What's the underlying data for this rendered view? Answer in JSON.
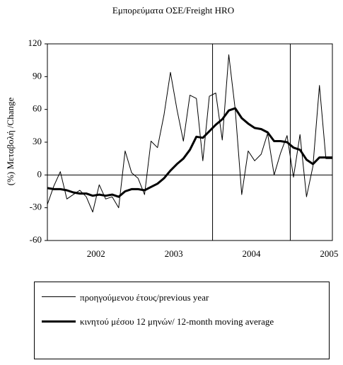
{
  "chart_data": {
    "type": "line",
    "title": "Εμπορεύματα ΟΣΕ/Freight HRO",
    "y_label": "(%) Μεταβολή /Change",
    "categories": [
      null,
      null,
      null,
      null,
      null,
      null,
      null,
      "2002",
      null,
      null,
      null,
      null,
      null,
      null,
      null,
      null,
      null,
      null,
      null,
      "2003",
      null,
      null,
      null,
      null,
      null,
      null,
      null,
      null,
      null,
      null,
      null,
      "2004",
      null,
      null,
      null,
      null,
      null,
      null,
      null,
      null,
      null,
      null,
      null,
      "2005",
      null
    ],
    "series": [
      {
        "name": "προηγούμενου έτους/previous year",
        "color": "#000000",
        "width": 1,
        "values": [
          -27,
          -10,
          3,
          -22,
          -18,
          -14,
          -20,
          -34,
          -9,
          -22,
          -20,
          -30,
          22,
          2,
          -3,
          -18,
          31,
          25,
          55,
          94,
          60,
          31,
          73,
          70,
          13,
          72,
          75,
          32,
          110,
          60,
          -18,
          22,
          13,
          19,
          38,
          0,
          20,
          36,
          -2,
          37,
          -20,
          8,
          82,
          15,
          15
        ]
      },
      {
        "name": "κινητού μέσου 12 μηνών/ 12-month moving average",
        "color": "#000000",
        "width": 3,
        "values": [
          -12,
          -13,
          -13,
          -14,
          -16,
          -17,
          -17,
          -19,
          -18,
          -19,
          -18,
          -20,
          -15,
          -13,
          -13,
          -14,
          -11,
          -8,
          -3,
          4,
          10,
          15,
          23,
          35,
          34,
          40,
          46,
          51,
          59,
          61,
          52,
          47,
          43,
          42,
          39,
          31,
          31,
          30,
          25,
          23,
          14,
          10,
          16,
          16,
          16
        ]
      }
    ],
    "ylim": [
      -60,
      120
    ],
    "yticks": [
      -60,
      -30,
      0,
      30,
      60,
      90,
      120
    ]
  }
}
